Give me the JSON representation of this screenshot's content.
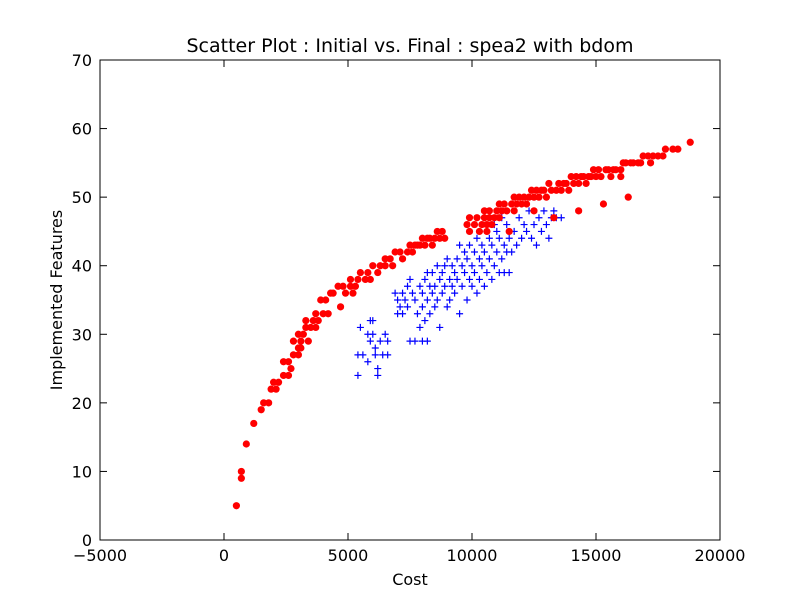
{
  "chart_data": {
    "type": "scatter",
    "title": "Scatter Plot : Initial vs. Final : spea2 with bdom",
    "xlabel": "Cost",
    "ylabel": "Implemented Features",
    "xlim": [
      -5000,
      20000
    ],
    "ylim": [
      0,
      70
    ],
    "xticks": [
      -5000,
      0,
      5000,
      10000,
      15000,
      20000
    ],
    "yticks": [
      0,
      10,
      20,
      30,
      40,
      50,
      60,
      70
    ],
    "grid": false,
    "legend": "none",
    "series": [
      {
        "marker": "plus",
        "color": "#0000ff",
        "points": [
          [
            5400,
            24
          ],
          [
            5400,
            27
          ],
          [
            5600,
            27
          ],
          [
            5500,
            31
          ],
          [
            5800,
            30
          ],
          [
            5900,
            32
          ],
          [
            6000,
            32
          ],
          [
            6000,
            30
          ],
          [
            5900,
            29
          ],
          [
            5800,
            26
          ],
          [
            6100,
            28
          ],
          [
            6100,
            27
          ],
          [
            6200,
            25
          ],
          [
            6200,
            24
          ],
          [
            6300,
            29
          ],
          [
            6400,
            27
          ],
          [
            6500,
            30
          ],
          [
            6600,
            27
          ],
          [
            6600,
            29
          ],
          [
            6900,
            36
          ],
          [
            7000,
            35
          ],
          [
            7000,
            33
          ],
          [
            7100,
            34
          ],
          [
            7200,
            33
          ],
          [
            7200,
            36
          ],
          [
            7300,
            35
          ],
          [
            7400,
            34
          ],
          [
            7400,
            37
          ],
          [
            7500,
            29
          ],
          [
            7500,
            38
          ],
          [
            7600,
            36
          ],
          [
            7700,
            35
          ],
          [
            7700,
            29
          ],
          [
            7800,
            33
          ],
          [
            7900,
            37
          ],
          [
            7900,
            31
          ],
          [
            8000,
            36
          ],
          [
            8000,
            34
          ],
          [
            8000,
            29
          ],
          [
            8100,
            38
          ],
          [
            8100,
            32
          ],
          [
            8200,
            39
          ],
          [
            8200,
            35
          ],
          [
            8200,
            29
          ],
          [
            8300,
            37
          ],
          [
            8300,
            33
          ],
          [
            8400,
            39
          ],
          [
            8400,
            36
          ],
          [
            8500,
            37
          ],
          [
            8500,
            34
          ],
          [
            8600,
            40
          ],
          [
            8600,
            35
          ],
          [
            8700,
            38
          ],
          [
            8700,
            31
          ],
          [
            8800,
            39
          ],
          [
            8800,
            36
          ],
          [
            8900,
            40
          ],
          [
            8900,
            37
          ],
          [
            9000,
            34
          ],
          [
            9000,
            41
          ],
          [
            9100,
            38
          ],
          [
            9100,
            35
          ],
          [
            9200,
            40
          ],
          [
            9200,
            37
          ],
          [
            9300,
            39
          ],
          [
            9300,
            36
          ],
          [
            9400,
            41
          ],
          [
            9400,
            38
          ],
          [
            9500,
            43
          ],
          [
            9500,
            33
          ],
          [
            9600,
            40
          ],
          [
            9600,
            37
          ],
          [
            9700,
            42
          ],
          [
            9700,
            39
          ],
          [
            9800,
            35
          ],
          [
            9800,
            41
          ],
          [
            9900,
            38
          ],
          [
            9900,
            43
          ],
          [
            10000,
            40
          ],
          [
            10000,
            37
          ],
          [
            10100,
            42
          ],
          [
            10100,
            39
          ],
          [
            10200,
            44
          ],
          [
            10200,
            36
          ],
          [
            10300,
            41
          ],
          [
            10300,
            38
          ],
          [
            10400,
            43
          ],
          [
            10400,
            40
          ],
          [
            10500,
            37
          ],
          [
            10500,
            42
          ],
          [
            10600,
            45
          ],
          [
            10600,
            39
          ],
          [
            10700,
            41
          ],
          [
            10700,
            44
          ],
          [
            10800,
            43
          ],
          [
            10800,
            38
          ],
          [
            10900,
            40
          ],
          [
            10900,
            46
          ],
          [
            11000,
            42
          ],
          [
            11000,
            45
          ],
          [
            11100,
            39
          ],
          [
            11100,
            44
          ],
          [
            11200,
            41
          ],
          [
            11200,
            47
          ],
          [
            11300,
            43
          ],
          [
            11300,
            39
          ],
          [
            11400,
            46
          ],
          [
            11400,
            42
          ],
          [
            11500,
            44
          ],
          [
            11500,
            39
          ],
          [
            11600,
            42
          ],
          [
            11700,
            45
          ],
          [
            11800,
            43
          ],
          [
            11900,
            47
          ],
          [
            12000,
            44
          ],
          [
            12100,
            46
          ],
          [
            12200,
            45
          ],
          [
            12300,
            48
          ],
          [
            12400,
            44
          ],
          [
            12500,
            46
          ],
          [
            12600,
            43
          ],
          [
            12700,
            47
          ],
          [
            12800,
            45
          ],
          [
            12900,
            48
          ],
          [
            13000,
            46
          ],
          [
            13100,
            44
          ],
          [
            13200,
            47
          ],
          [
            13300,
            48
          ],
          [
            13400,
            47
          ],
          [
            13600,
            47
          ]
        ]
      },
      {
        "marker": "circle",
        "color": "#ff0000",
        "points": [
          [
            500,
            5
          ],
          [
            700,
            9
          ],
          [
            700,
            10
          ],
          [
            900,
            14
          ],
          [
            1200,
            17
          ],
          [
            1500,
            19
          ],
          [
            1600,
            20
          ],
          [
            1800,
            20
          ],
          [
            1900,
            22
          ],
          [
            2000,
            23
          ],
          [
            2100,
            22
          ],
          [
            2200,
            23
          ],
          [
            2400,
            24
          ],
          [
            2400,
            26
          ],
          [
            2600,
            24
          ],
          [
            2600,
            26
          ],
          [
            2700,
            25
          ],
          [
            2800,
            27
          ],
          [
            2800,
            29
          ],
          [
            3000,
            27
          ],
          [
            3000,
            28
          ],
          [
            3000,
            30
          ],
          [
            3100,
            28
          ],
          [
            3100,
            29
          ],
          [
            3200,
            30
          ],
          [
            3300,
            31
          ],
          [
            3300,
            32
          ],
          [
            3400,
            29
          ],
          [
            3500,
            31
          ],
          [
            3600,
            32
          ],
          [
            3700,
            33
          ],
          [
            3700,
            31
          ],
          [
            3800,
            32
          ],
          [
            3900,
            35
          ],
          [
            4000,
            33
          ],
          [
            4100,
            35
          ],
          [
            4200,
            33
          ],
          [
            4300,
            36
          ],
          [
            4400,
            36
          ],
          [
            4600,
            37
          ],
          [
            4700,
            34
          ],
          [
            4800,
            37
          ],
          [
            4900,
            36
          ],
          [
            5100,
            37
          ],
          [
            5100,
            38
          ],
          [
            5200,
            36
          ],
          [
            5300,
            37
          ],
          [
            5400,
            38
          ],
          [
            5500,
            39
          ],
          [
            5700,
            38
          ],
          [
            5800,
            39
          ],
          [
            5900,
            38
          ],
          [
            6000,
            40
          ],
          [
            6200,
            39
          ],
          [
            6300,
            40
          ],
          [
            6500,
            40
          ],
          [
            6500,
            41
          ],
          [
            6700,
            41
          ],
          [
            6800,
            40
          ],
          [
            6900,
            42
          ],
          [
            7100,
            42
          ],
          [
            7200,
            41
          ],
          [
            7400,
            42
          ],
          [
            7500,
            43
          ],
          [
            7600,
            42
          ],
          [
            7700,
            43
          ],
          [
            7800,
            43
          ],
          [
            7900,
            43
          ],
          [
            8000,
            44
          ],
          [
            8100,
            43
          ],
          [
            8200,
            44
          ],
          [
            8300,
            44
          ],
          [
            8400,
            43
          ],
          [
            8500,
            44
          ],
          [
            8600,
            45
          ],
          [
            8700,
            44
          ],
          [
            8800,
            45
          ],
          [
            8900,
            44
          ],
          [
            9800,
            46
          ],
          [
            9900,
            45
          ],
          [
            9900,
            47
          ],
          [
            10100,
            46
          ],
          [
            10200,
            47
          ],
          [
            10300,
            45
          ],
          [
            10400,
            46
          ],
          [
            10500,
            47
          ],
          [
            10500,
            48
          ],
          [
            10600,
            45
          ],
          [
            10600,
            46
          ],
          [
            10700,
            47
          ],
          [
            10700,
            48
          ],
          [
            10800,
            46
          ],
          [
            10900,
            47
          ],
          [
            11000,
            48
          ],
          [
            11100,
            47
          ],
          [
            11100,
            49
          ],
          [
            11200,
            48
          ],
          [
            11300,
            49
          ],
          [
            11400,
            48
          ],
          [
            11500,
            45
          ],
          [
            11600,
            49
          ],
          [
            11700,
            48
          ],
          [
            11700,
            50
          ],
          [
            11800,
            49
          ],
          [
            11900,
            50
          ],
          [
            12000,
            49
          ],
          [
            12100,
            50
          ],
          [
            12200,
            49
          ],
          [
            12300,
            50
          ],
          [
            12400,
            51
          ],
          [
            12500,
            50
          ],
          [
            12500,
            48
          ],
          [
            12600,
            51
          ],
          [
            12700,
            50
          ],
          [
            12800,
            51
          ],
          [
            12900,
            51
          ],
          [
            13000,
            50
          ],
          [
            13100,
            52
          ],
          [
            13200,
            51
          ],
          [
            13300,
            47
          ],
          [
            13400,
            51
          ],
          [
            13500,
            52
          ],
          [
            13600,
            51
          ],
          [
            13700,
            52
          ],
          [
            13800,
            52
          ],
          [
            13900,
            51
          ],
          [
            14000,
            53
          ],
          [
            14100,
            52
          ],
          [
            14200,
            53
          ],
          [
            14300,
            48
          ],
          [
            14300,
            52
          ],
          [
            14400,
            53
          ],
          [
            14500,
            53
          ],
          [
            14600,
            52
          ],
          [
            14700,
            53
          ],
          [
            14800,
            53
          ],
          [
            14900,
            54
          ],
          [
            15000,
            53
          ],
          [
            15100,
            54
          ],
          [
            15200,
            53
          ],
          [
            15300,
            49
          ],
          [
            15400,
            54
          ],
          [
            15500,
            54
          ],
          [
            15600,
            53
          ],
          [
            15700,
            54
          ],
          [
            15800,
            54
          ],
          [
            16000,
            54
          ],
          [
            16000,
            53
          ],
          [
            16100,
            55
          ],
          [
            16200,
            55
          ],
          [
            16300,
            50
          ],
          [
            16400,
            55
          ],
          [
            16500,
            55
          ],
          [
            16700,
            55
          ],
          [
            16800,
            55
          ],
          [
            16900,
            56
          ],
          [
            17100,
            56
          ],
          [
            17200,
            55
          ],
          [
            17300,
            56
          ],
          [
            17500,
            56
          ],
          [
            17700,
            56
          ],
          [
            17800,
            57
          ],
          [
            18100,
            57
          ],
          [
            18300,
            57
          ],
          [
            18800,
            58
          ]
        ]
      }
    ]
  }
}
